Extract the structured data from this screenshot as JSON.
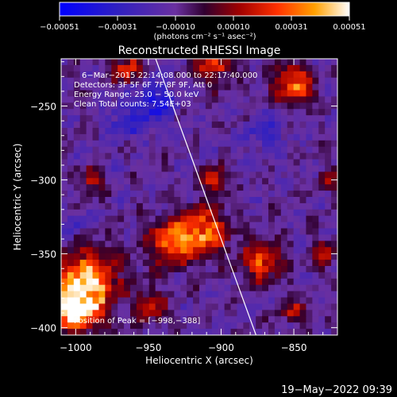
{
  "chart_data": {
    "type": "heatmap",
    "title": "Reconstructed RHESSI Image",
    "xlabel": "Heliocentric X (arcsec)",
    "ylabel": "Heliocentric Y (arcsec)",
    "xlim": [
      -1010,
      -820
    ],
    "ylim": [
      -405,
      -218
    ],
    "x_ticks": [
      -1000,
      -950,
      -900,
      -850
    ],
    "y_ticks": [
      -250,
      -300,
      -350,
      -400
    ],
    "x_tick_labels": [
      "−1000",
      "−950",
      "−900",
      "−850"
    ],
    "y_tick_labels": [
      "−250",
      "−300",
      "−350",
      "−400"
    ],
    "colorbar": {
      "range": [
        -0.00051,
        0.00051
      ],
      "tick_labels": [
        "−0.00051",
        "−0.00031",
        "−0.00010",
        "0.00010",
        "0.00031",
        "0.00051"
      ],
      "units": "(photons cm⁻² s⁻¹ asec⁻²)"
    },
    "annotations": [
      "6−Mar−2015 22:14:08.000 to 22:17:40.000",
      "Detectors: 3F 5F 6F 7F 8F 9F, Att 0",
      "Energy Range: 25.0 − 50.0 keV",
      "Clean     Total counts: 7.54E+03"
    ],
    "peak_label": "Position of Peak = [−998,−388]",
    "peak_position": [
      -998,
      -388
    ],
    "limb_line": [
      [
        -945,
        -218
      ],
      [
        -876,
        -405
      ]
    ],
    "hotspots": [
      {
        "x": -992,
        "y": -370,
        "r": 22,
        "v": 1.0
      },
      {
        "x": -1000,
        "y": -388,
        "r": 14,
        "v": 1.05
      },
      {
        "x": -935,
        "y": -342,
        "r": 15,
        "v": 0.75
      },
      {
        "x": -912,
        "y": -335,
        "r": 16,
        "v": 0.85
      },
      {
        "x": -872,
        "y": -355,
        "r": 14,
        "v": 0.7
      },
      {
        "x": -850,
        "y": -235,
        "r": 13,
        "v": 0.85
      },
      {
        "x": -905,
        "y": -220,
        "r": 14,
        "v": 0.7
      },
      {
        "x": -965,
        "y": -225,
        "r": 10,
        "v": 0.6
      },
      {
        "x": -905,
        "y": -300,
        "r": 9,
        "v": 0.6
      },
      {
        "x": -990,
        "y": -300,
        "r": 8,
        "v": 0.55
      },
      {
        "x": -948,
        "y": -385,
        "r": 10,
        "v": 0.55
      },
      {
        "x": -830,
        "y": -350,
        "r": 9,
        "v": 0.5
      },
      {
        "x": -850,
        "y": -390,
        "r": 8,
        "v": 0.45
      },
      {
        "x": -825,
        "y": -300,
        "r": 7,
        "v": 0.45
      }
    ],
    "coldspots": [
      {
        "x": -945,
        "y": -248,
        "r": 14,
        "v": -0.55
      },
      {
        "x": -965,
        "y": -260,
        "r": 12,
        "v": -0.4
      },
      {
        "x": -870,
        "y": -268,
        "r": 12,
        "v": -0.35
      },
      {
        "x": -1000,
        "y": -330,
        "r": 8,
        "v": -0.3
      }
    ]
  },
  "footer_timestamp": "19−May−2022 09:39"
}
